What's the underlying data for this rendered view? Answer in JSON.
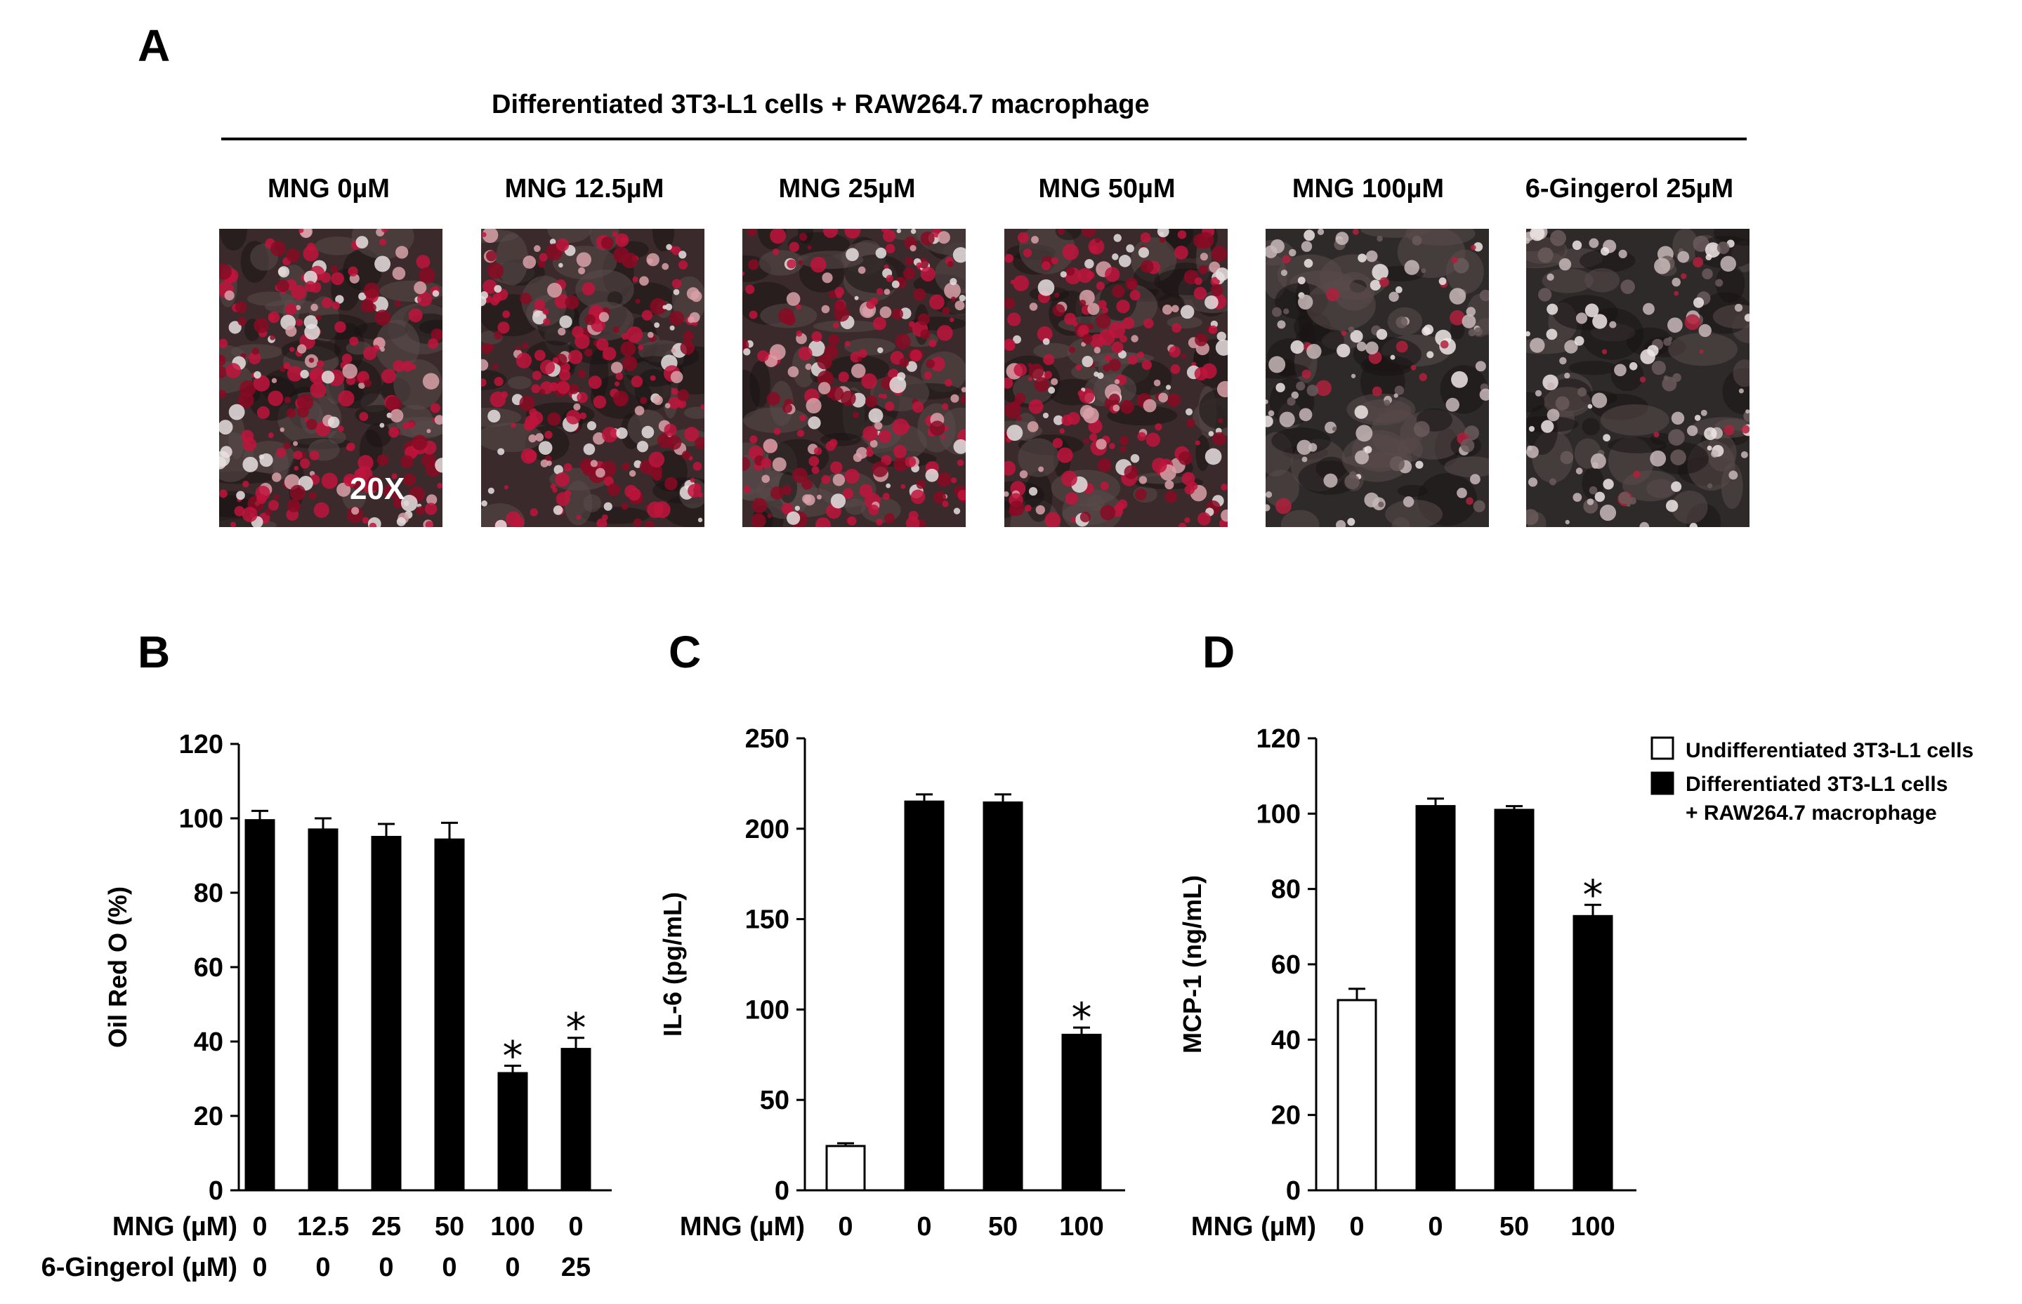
{
  "panel_a": {
    "letter": "A",
    "headline": "Differentiated 3T3-L1 cells + RAW264.7 macrophage",
    "conditions": [
      "MNG 0µM",
      "MNG 12.5µM",
      "MNG 25µM",
      "MNG 50µM",
      "MNG 100µM",
      "6-Gingerol 25µM"
    ],
    "magnification": "20X"
  },
  "legend": {
    "items": [
      {
        "label": "Undifferentiated  3T3-L1 cells",
        "fill": "#ffffff"
      },
      {
        "label": "Differentiated  3T3-L1 cells",
        "label2": "+ RAW264.7 macrophage",
        "fill": "#000000"
      }
    ]
  },
  "chart_data": [
    {
      "panel": "B",
      "type": "bar",
      "ylabel": "Oil Red O (%)",
      "ylim": [
        0,
        120
      ],
      "yticks": [
        0,
        20,
        40,
        60,
        80,
        100,
        120
      ],
      "row_labels": [
        "MNG (µM)",
        "6-Gingerol (µM)"
      ],
      "rows": [
        [
          "0",
          "12.5",
          "25",
          "50",
          "100",
          "0"
        ],
        [
          "0",
          "0",
          "0",
          "0",
          "0",
          "25"
        ]
      ],
      "values": [
        99.5,
        97,
        95,
        94.3,
        31.5,
        38
      ],
      "errors": [
        2.5,
        3,
        3.5,
        4.5,
        2,
        3
      ],
      "fills": [
        "#000000",
        "#000000",
        "#000000",
        "#000000",
        "#000000",
        "#000000"
      ],
      "significant": [
        false,
        false,
        false,
        false,
        true,
        true
      ],
      "marker": "*"
    },
    {
      "panel": "C",
      "type": "bar",
      "ylabel": "IL-6 (pg/mL)",
      "ylim": [
        0,
        250
      ],
      "yticks": [
        0,
        50,
        100,
        150,
        200,
        250
      ],
      "row_labels": [
        "MNG (µM)"
      ],
      "rows": [
        [
          "0",
          "0",
          "50",
          "100"
        ]
      ],
      "values": [
        24.5,
        215,
        214.5,
        86
      ],
      "errors": [
        1.5,
        4,
        4.5,
        4
      ],
      "fills": [
        "#ffffff",
        "#000000",
        "#000000",
        "#000000"
      ],
      "significant": [
        false,
        false,
        false,
        true
      ],
      "marker": "*"
    },
    {
      "panel": "D",
      "type": "bar",
      "ylabel": "MCP-1 (ng/mL)",
      "ylim": [
        0,
        120
      ],
      "yticks": [
        0,
        20,
        40,
        60,
        80,
        100,
        120
      ],
      "row_labels": [
        "MNG (µM)"
      ],
      "rows": [
        [
          "0",
          "0",
          "50",
          "100"
        ]
      ],
      "values": [
        50.5,
        102,
        101,
        72.8
      ],
      "errors": [
        3,
        2,
        1,
        3
      ],
      "fills": [
        "#ffffff",
        "#000000",
        "#000000",
        "#000000"
      ],
      "significant": [
        false,
        false,
        false,
        true
      ],
      "marker": "*"
    }
  ]
}
